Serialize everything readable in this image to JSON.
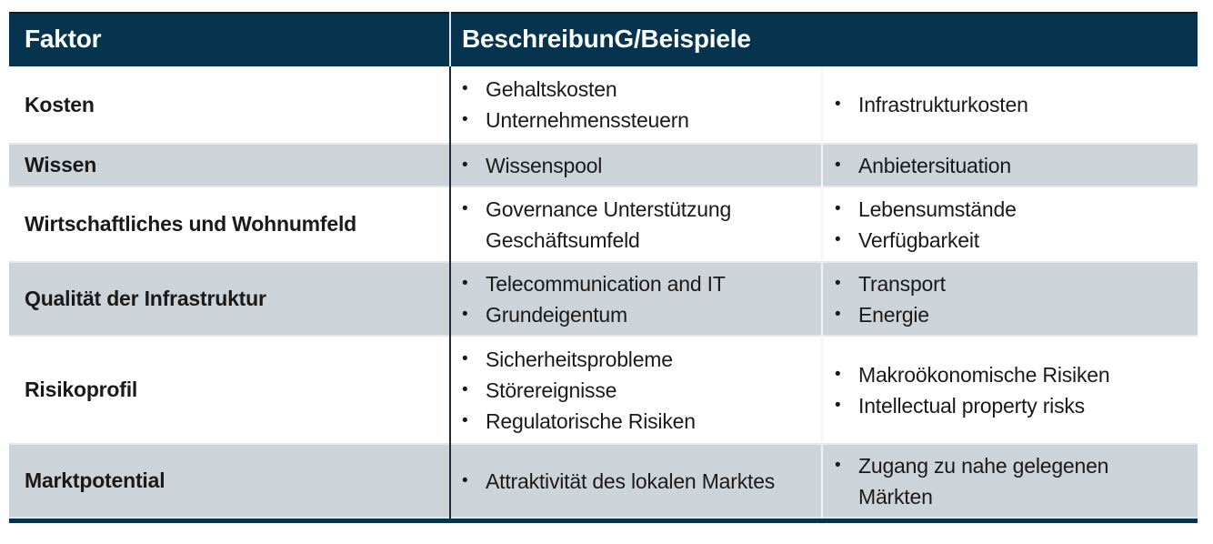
{
  "table": {
    "header": {
      "factor_label": "Faktor",
      "description_label": "BeschreibunG/Beispiele"
    },
    "bullet_glyph": "•",
    "rows": [
      {
        "factor": "Kosten",
        "shaded": false,
        "left_items": [
          "Gehaltskosten",
          "Unternehmenssteuern"
        ],
        "right_items": [
          "Infrastrukturkosten"
        ]
      },
      {
        "factor": "Wissen",
        "shaded": true,
        "left_items": [
          "Wissenspool"
        ],
        "right_items": [
          "Anbietersituation"
        ]
      },
      {
        "factor": "Wirtschaftliches und Wohnumfeld",
        "shaded": false,
        "left_items": [
          "Governance Unterstützung Geschäftsumfeld"
        ],
        "right_items": [
          "Lebensumstände",
          "Verfügbarkeit"
        ]
      },
      {
        "factor": "Qualität der Infrastruktur",
        "shaded": true,
        "left_items": [
          "Telecommunication and IT",
          "Grundeigentum"
        ],
        "right_items": [
          "Transport",
          "Energie"
        ]
      },
      {
        "factor": "Risikoprofil",
        "shaded": false,
        "left_items": [
          "Sicherheitsprobleme",
          "Störereignisse",
          "Regulatorische Risiken"
        ],
        "right_items": [
          "Makroökonomische Risiken",
          "Intellectual property risks"
        ]
      },
      {
        "factor": "Marktpotential",
        "shaded": true,
        "left_items": [
          "Attraktivität des lokalen Marktes"
        ],
        "right_items": [
          "Zugang zu nahe gelegenen Märkten"
        ]
      }
    ]
  },
  "colors": {
    "header_bg": "#06344E",
    "header_text": "#FFFFFF",
    "shaded_row_bg": "#CCD3D9",
    "text": "#1A1A1A",
    "column_divider_dark": "#1C2B37",
    "column_divider_light": "#DFE3E6",
    "sub_divider": "#F2F4F6",
    "table_bottom_border": "#06344E"
  }
}
